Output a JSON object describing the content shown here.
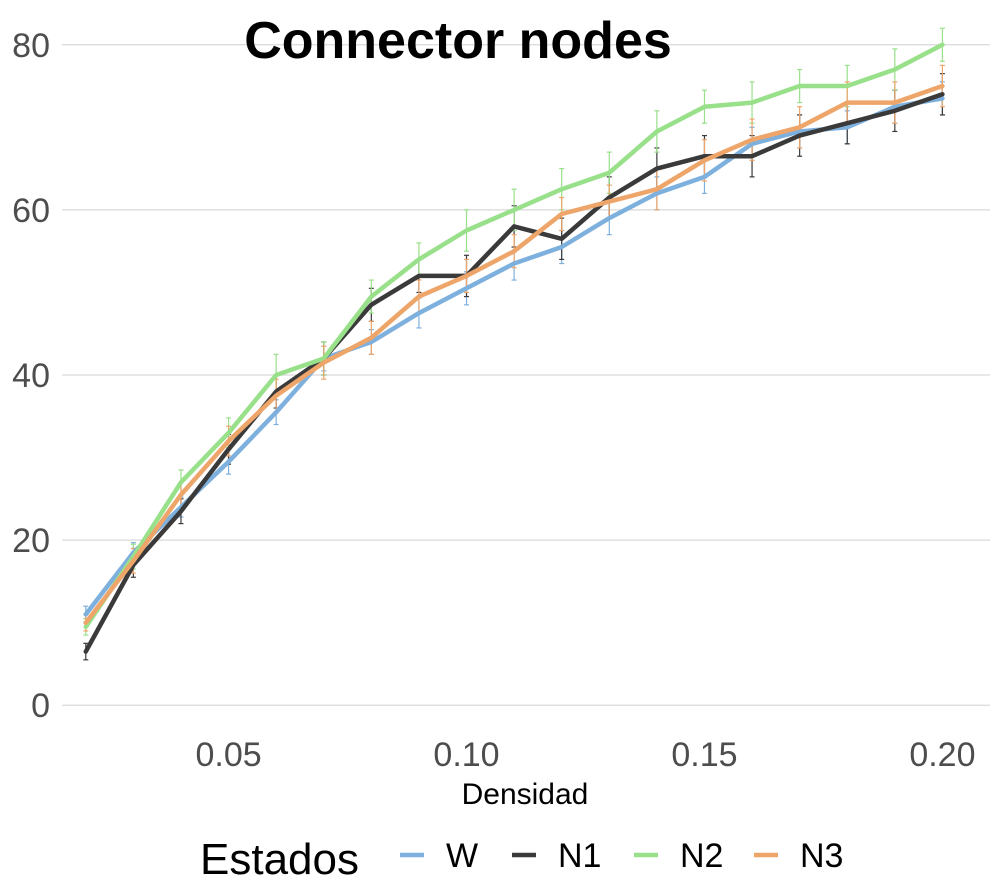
{
  "chart_data": {
    "type": "line",
    "title": "Connector nodes",
    "xlabel": "Densidad",
    "ylabel": "",
    "xlim": [
      0.015,
      0.21
    ],
    "ylim": [
      -3,
      83
    ],
    "x_ticks": [
      0.05,
      0.1,
      0.15,
      0.2
    ],
    "x_tick_labels": [
      "0.05",
      "0.10",
      "0.15",
      "0.20"
    ],
    "y_ticks": [
      0,
      20,
      40,
      60,
      80
    ],
    "y_tick_labels": [
      "0",
      "20",
      "40",
      "60",
      "80"
    ],
    "grid": true,
    "legend": {
      "title": "Estados",
      "placement": "bottom"
    },
    "x": [
      0.02,
      0.03,
      0.04,
      0.05,
      0.06,
      0.07,
      0.08,
      0.09,
      0.1,
      0.11,
      0.12,
      0.13,
      0.14,
      0.15,
      0.16,
      0.17,
      0.18,
      0.19,
      0.2
    ],
    "series": [
      {
        "name": "W",
        "color": "#7eb0de",
        "values": [
          11.0,
          18.5,
          24.0,
          29.5,
          35.5,
          42.0,
          44.0,
          47.5,
          50.5,
          53.5,
          55.5,
          59.0,
          62.0,
          64.0,
          68.0,
          69.5,
          70.0,
          72.5,
          73.5
        ],
        "errors": [
          1.0,
          1.2,
          1.2,
          1.5,
          1.5,
          1.5,
          1.5,
          1.8,
          2.0,
          2.0,
          2.0,
          2.0,
          2.0,
          2.0,
          2.0,
          2.0,
          2.0,
          2.0,
          2.0
        ]
      },
      {
        "name": "N1",
        "color": "#3a3a3a",
        "values": [
          6.5,
          17.0,
          23.5,
          31.0,
          38.0,
          42.0,
          48.5,
          52.0,
          52.0,
          58.0,
          56.5,
          61.5,
          65.0,
          66.5,
          66.5,
          69.0,
          70.5,
          72.0,
          74.0
        ],
        "errors": [
          1.0,
          1.5,
          1.5,
          1.8,
          2.0,
          2.0,
          2.0,
          2.0,
          2.5,
          2.5,
          2.5,
          2.5,
          2.5,
          2.5,
          2.5,
          2.5,
          2.5,
          2.5,
          2.5
        ]
      },
      {
        "name": "N2",
        "color": "#98e08a",
        "values": [
          9.5,
          18.0,
          27.0,
          33.0,
          40.0,
          42.0,
          49.5,
          54.0,
          57.5,
          60.0,
          62.5,
          64.5,
          69.5,
          72.5,
          73.0,
          75.0,
          75.0,
          77.0,
          80.0
        ],
        "errors": [
          1.0,
          1.5,
          1.5,
          1.8,
          2.5,
          2.0,
          2.0,
          2.0,
          2.5,
          2.5,
          2.5,
          2.5,
          2.5,
          2.0,
          2.5,
          2.0,
          2.5,
          2.5,
          2.0
        ]
      },
      {
        "name": "N3",
        "color": "#eea56a",
        "values": [
          10.0,
          17.5,
          25.5,
          32.0,
          37.5,
          41.5,
          44.5,
          49.5,
          52.0,
          55.0,
          59.5,
          61.0,
          62.5,
          66.0,
          68.5,
          70.0,
          73.0,
          73.0,
          75.0
        ],
        "errors": [
          1.0,
          1.5,
          1.5,
          1.8,
          2.0,
          2.0,
          2.0,
          2.0,
          2.0,
          2.0,
          2.0,
          2.0,
          2.5,
          2.5,
          2.5,
          2.5,
          2.5,
          2.5,
          2.5
        ]
      }
    ]
  }
}
